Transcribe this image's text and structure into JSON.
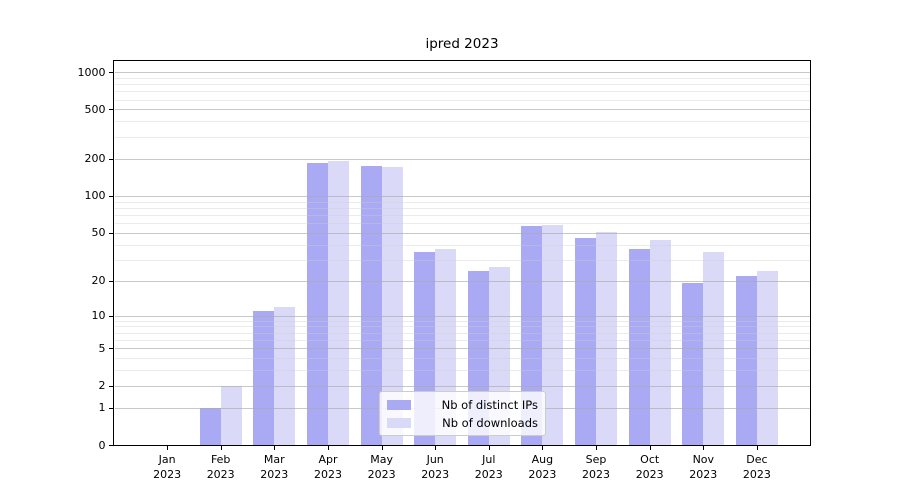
{
  "title": "ipred 2023",
  "legend": {
    "items": [
      {
        "label": "Nb of distinct IPs",
        "color": "#a9a9f4"
      },
      {
        "label": "Nb of downloads",
        "color": "#dadaf8"
      }
    ],
    "position": "lower center"
  },
  "chart_data": {
    "type": "bar",
    "title": "ipred 2023",
    "categories": [
      "Jan",
      "Feb",
      "Mar",
      "Apr",
      "May",
      "Jun",
      "Jul",
      "Aug",
      "Sep",
      "Oct",
      "Nov",
      "Dec"
    ],
    "year_label": "2023",
    "series": [
      {
        "name": "Nb of distinct IPs",
        "color": "#a9a9f4",
        "values": [
          0,
          1,
          11,
          185,
          175,
          35,
          24,
          57,
          45,
          37,
          19,
          22
        ]
      },
      {
        "name": "Nb of downloads",
        "color": "#dadaf8",
        "values": [
          0,
          2,
          12,
          192,
          173,
          37,
          26,
          58,
          51,
          44,
          35,
          24
        ]
      }
    ],
    "xlabel": "",
    "ylabel": "",
    "yscale": "log1p",
    "ylim": [
      0,
      1250
    ],
    "yticks_major": [
      0,
      1,
      2,
      5,
      10,
      20,
      50,
      100,
      200,
      500,
      1000
    ],
    "yticks_minor": [
      3,
      4,
      6,
      7,
      8,
      9,
      30,
      40,
      60,
      70,
      80,
      90,
      300,
      400,
      600,
      700,
      800,
      900
    ],
    "grid": "horizontal",
    "legend_position": "lower center"
  },
  "colors": {
    "grid_major": "#aaaaaa",
    "grid_minor": "#cdcdcd",
    "spine": "#000000",
    "background": "#ffffff"
  }
}
